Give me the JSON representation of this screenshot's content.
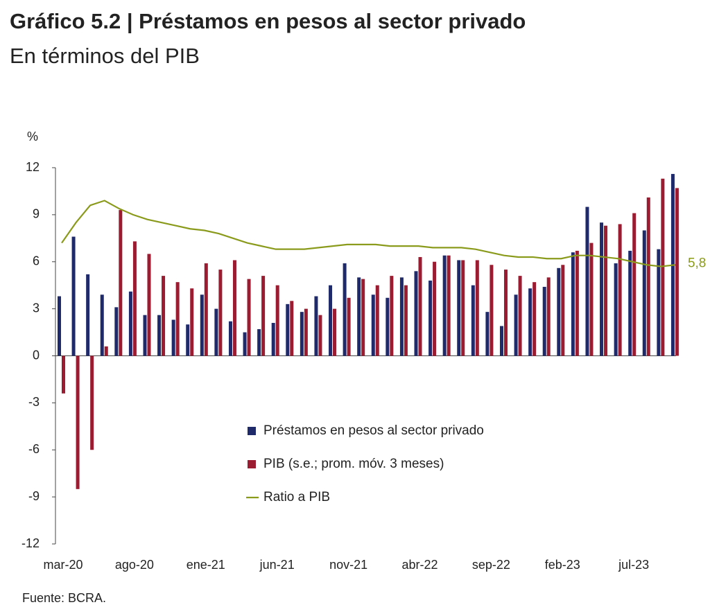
{
  "chart_data": {
    "type": "bar",
    "title": "Gráfico 5.2 | Préstamos en pesos al sector privado",
    "subtitle": "En términos del PIB",
    "y_label": "%",
    "source": "Fuente: BCRA.",
    "categories": [
      "mar-20",
      null,
      null,
      null,
      null,
      "ago-20",
      null,
      null,
      null,
      null,
      "ene-21",
      null,
      null,
      null,
      null,
      "jun-21",
      null,
      null,
      null,
      null,
      "nov-21",
      null,
      null,
      null,
      null,
      "abr-22",
      null,
      null,
      null,
      null,
      "sep-22",
      null,
      null,
      null,
      null,
      "feb-23",
      null,
      null,
      null,
      null,
      "jul-23",
      null,
      null,
      null
    ],
    "series": [
      {
        "name": "Préstamos en pesos al sector privado",
        "color": "#1f2a6b",
        "values": [
          3.8,
          7.6,
          5.2,
          3.9,
          3.1,
          4.1,
          2.6,
          2.6,
          2.3,
          2.0,
          3.9,
          3.0,
          2.2,
          1.5,
          1.7,
          2.1,
          3.3,
          2.8,
          3.8,
          4.5,
          5.9,
          5.0,
          3.9,
          3.7,
          5.0,
          5.4,
          4.8,
          6.4,
          6.1,
          4.5,
          2.8,
          1.9,
          3.9,
          4.3,
          4.4,
          5.6,
          6.6,
          9.5,
          8.5,
          5.9,
          6.7,
          8.0,
          6.8,
          11.6
        ]
      },
      {
        "name": "PIB (s.e.; prom. móv. 3 meses)",
        "color": "#9b1b30",
        "values": [
          -2.4,
          -8.5,
          -6.0,
          0.6,
          9.3,
          7.3,
          6.5,
          5.1,
          4.7,
          4.3,
          5.9,
          5.5,
          6.1,
          4.9,
          5.1,
          4.5,
          3.5,
          3.0,
          2.6,
          3.0,
          3.7,
          4.9,
          4.5,
          5.1,
          4.5,
          6.3,
          6.0,
          6.4,
          6.1,
          6.1,
          5.8,
          5.5,
          5.1,
          4.7,
          5.0,
          5.8,
          6.7,
          7.2,
          8.3,
          8.4,
          9.1,
          10.1,
          11.3,
          10.7
        ]
      },
      {
        "name": "Ratio a PIB",
        "type": "line",
        "color": "#8a9a1b",
        "values": [
          7.2,
          8.5,
          9.6,
          9.9,
          9.4,
          9.0,
          8.7,
          8.5,
          8.3,
          8.1,
          8.0,
          7.8,
          7.5,
          7.2,
          7.0,
          6.8,
          6.8,
          6.8,
          6.9,
          7.0,
          7.1,
          7.1,
          7.1,
          7.0,
          7.0,
          7.0,
          6.9,
          6.9,
          6.9,
          6.8,
          6.6,
          6.4,
          6.3,
          6.3,
          6.2,
          6.2,
          6.4,
          6.4,
          6.3,
          6.2,
          6.0,
          5.8,
          5.7,
          5.8
        ],
        "value_labels": [
          null,
          null,
          null,
          null,
          null,
          null,
          null,
          null,
          null,
          null,
          null,
          null,
          null,
          null,
          null,
          null,
          null,
          null,
          null,
          null,
          null,
          null,
          null,
          null,
          null,
          null,
          null,
          null,
          null,
          null,
          null,
          null,
          null,
          null,
          null,
          null,
          null,
          null,
          null,
          null,
          null,
          null,
          null,
          "5,8"
        ]
      }
    ],
    "ylim": [
      -12,
      12
    ],
    "yticks": [
      -12,
      -9,
      -6,
      -3,
      0,
      3,
      6,
      9,
      12
    ],
    "grid": false
  }
}
